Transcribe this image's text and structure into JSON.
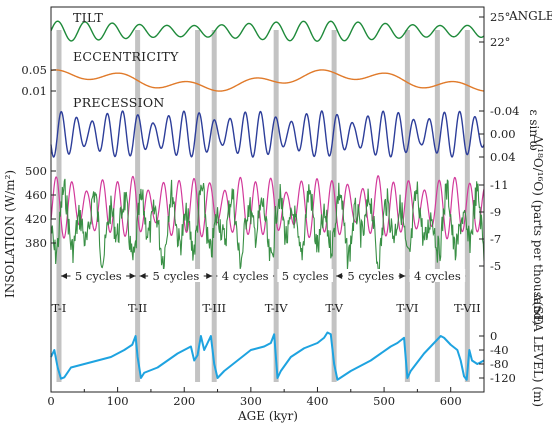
{
  "chart_data": {
    "type": "line",
    "xlabel": "AGE (kyr)",
    "x_ticks": [
      0,
      100,
      200,
      300,
      400,
      500,
      600
    ],
    "xlim": [
      0,
      650
    ],
    "panels": {
      "tilt": {
        "name": "TILT",
        "right_title": "ANGLE",
        "right_ticks": [
          "25°",
          "22°"
        ],
        "right_tick_values": [
          25,
          22
        ],
        "color": "#1e8a3a",
        "period_kyr": 41,
        "range": [
          22.1,
          24.5
        ]
      },
      "eccentricity": {
        "name": "ECCENTRICITY",
        "left_ticks": [
          "0.05",
          "0.01"
        ],
        "left_tick_values": [
          0.05,
          0.01
        ],
        "color": "#e07a2a",
        "period_kyr": 100,
        "range": [
          0.01,
          0.05
        ]
      },
      "precession": {
        "name": "PRECESSION",
        "right_title": "ε sin ω",
        "right_ticks": [
          "-0.04",
          "0.00",
          "0.04"
        ],
        "right_tick_values": [
          -0.04,
          0.0,
          0.04
        ],
        "color": "#2d3e9a",
        "period_kyr": 23,
        "range": [
          -0.045,
          0.045
        ]
      },
      "insolation_d18o": {
        "left_title": "INSOLATION (W/m²)",
        "left_ticks": [
          "500",
          "460",
          "420",
          "380"
        ],
        "left_tick_values": [
          500,
          460,
          420,
          380
        ],
        "right_title": "Δ(¹⁸O/¹⁶O) (parts per thousand)",
        "right_ticks": [
          "-11",
          "-9",
          "-7",
          "-5"
        ],
        "right_tick_values": [
          -11,
          -9,
          -7,
          -5
        ],
        "insolation_color": "#d23a9b",
        "d18o_color": "#2f8a3c"
      },
      "sea_level": {
        "right_title": "Δ(SEA LEVEL) (m)",
        "right_ticks": [
          "0",
          "-40",
          "-80",
          "-120"
        ],
        "right_tick_values": [
          0,
          -40,
          -80,
          -120
        ],
        "color": "#1ea3e0",
        "x": [
          0,
          5,
          10,
          15,
          20,
          30,
          50,
          70,
          90,
          110,
          122,
          127,
          130,
          135,
          140,
          160,
          190,
          210,
          215,
          220,
          225,
          230,
          240,
          245,
          250,
          260,
          280,
          300,
          320,
          330,
          335,
          340,
          345,
          360,
          380,
          400,
          410,
          415,
          420,
          425,
          430,
          450,
          480,
          510,
          520,
          530,
          535,
          540,
          560,
          575,
          580,
          585,
          590,
          600,
          610,
          615,
          620,
          624,
          628,
          632,
          640,
          650
        ],
        "y": [
          -60,
          -40,
          -90,
          -122,
          -118,
          -90,
          -80,
          -70,
          -60,
          -40,
          -25,
          0,
          -60,
          -120,
          -105,
          -90,
          -50,
          -30,
          -70,
          -55,
          0,
          -40,
          0,
          -80,
          -120,
          -100,
          -70,
          -40,
          -30,
          -20,
          5,
          -120,
          -100,
          -60,
          -35,
          -20,
          -5,
          10,
          5,
          -80,
          -125,
          -100,
          -70,
          -30,
          -20,
          -5,
          -120,
          -100,
          -50,
          -20,
          -10,
          0,
          -5,
          -25,
          -40,
          -70,
          -115,
          -125,
          -40,
          -70,
          -80,
          -70
        ]
      }
    },
    "terminations": {
      "labels": [
        "T-I",
        "T-II",
        "T-III",
        "T-IV",
        "T-V",
        "T-VI",
        "T-VII"
      ],
      "ages_kyr": [
        12,
        130,
        245,
        338,
        425,
        535,
        625
      ]
    },
    "shaded_bands_kyr": [
      12,
      130,
      220,
      245,
      338,
      425,
      535,
      580,
      625
    ],
    "cycle_intervals": [
      {
        "label": "5 cycles",
        "from": 12,
        "to": 130
      },
      {
        "label": "5 cycles",
        "from": 130,
        "to": 245
      },
      {
        "label": "4 cycles",
        "from": 245,
        "to": 338
      },
      {
        "label": "5 cycles",
        "from": 338,
        "to": 425
      },
      {
        "label": "5 cycles",
        "from": 425,
        "to": 535
      },
      {
        "label": "4 cycles",
        "from": 535,
        "to": 625
      }
    ],
    "grid": false,
    "legend": "inline labels"
  }
}
